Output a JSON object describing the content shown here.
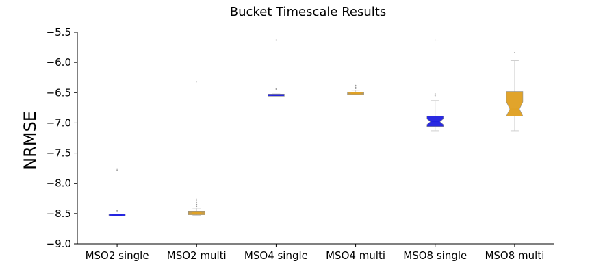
{
  "chart_data": {
    "type": "box",
    "title": "Bucket Timescale Results",
    "xlabel": "",
    "ylabel": "NRMSE",
    "ylim": [
      -9.0,
      -5.5
    ],
    "yticks": [
      -9.0,
      -8.5,
      -8.0,
      -7.5,
      -7.0,
      -6.5,
      -6.0,
      -5.5
    ],
    "ytick_labels": [
      "−9.0",
      "−8.5",
      "−8.0",
      "−7.5",
      "−7.0",
      "−6.5",
      "−6.0",
      "−5.5"
    ],
    "grid": false,
    "notched": true,
    "categories": [
      "MSO2 single",
      "MSO2 multi",
      "MSO4 single",
      "MSO4 multi",
      "MSO8 single",
      "MSO8 multi"
    ],
    "boxes": [
      {
        "whislo": -8.53,
        "q1": -8.53,
        "med": -8.525,
        "q3": -8.52,
        "whishi": -8.51,
        "fliers": [
          -7.76,
          -7.78,
          -8.45,
          -8.47
        ],
        "color": "#1f1fe0"
      },
      {
        "whislo": -8.53,
        "q1": -8.52,
        "med": -8.49,
        "q3": -8.46,
        "whishi": -8.41,
        "fliers": [
          -6.32,
          -8.26,
          -8.29,
          -8.32,
          -8.35,
          -8.38
        ],
        "color": "#e0a020"
      },
      {
        "whislo": -6.55,
        "q1": -6.545,
        "med": -6.54,
        "q3": -6.535,
        "whishi": -6.52,
        "fliers": [
          -5.63,
          -6.43,
          -6.45
        ],
        "color": "#1f1fe0"
      },
      {
        "whislo": -6.53,
        "q1": -6.53,
        "med": -6.51,
        "q3": -6.49,
        "whishi": -6.46,
        "fliers": [
          -6.38,
          -6.41,
          -6.43
        ],
        "color": "#e0a020"
      },
      {
        "whislo": -7.13,
        "q1": -7.06,
        "med": -6.98,
        "q3": -6.89,
        "whishi": -6.63,
        "fliers": [
          -5.63,
          -6.52,
          -6.55
        ],
        "color": "#1f1fe0"
      },
      {
        "whislo": -7.13,
        "q1": -6.89,
        "med": -6.77,
        "q3": -6.48,
        "whishi": -5.97,
        "fliers": [
          -5.84
        ],
        "color": "#e0a020"
      }
    ]
  }
}
